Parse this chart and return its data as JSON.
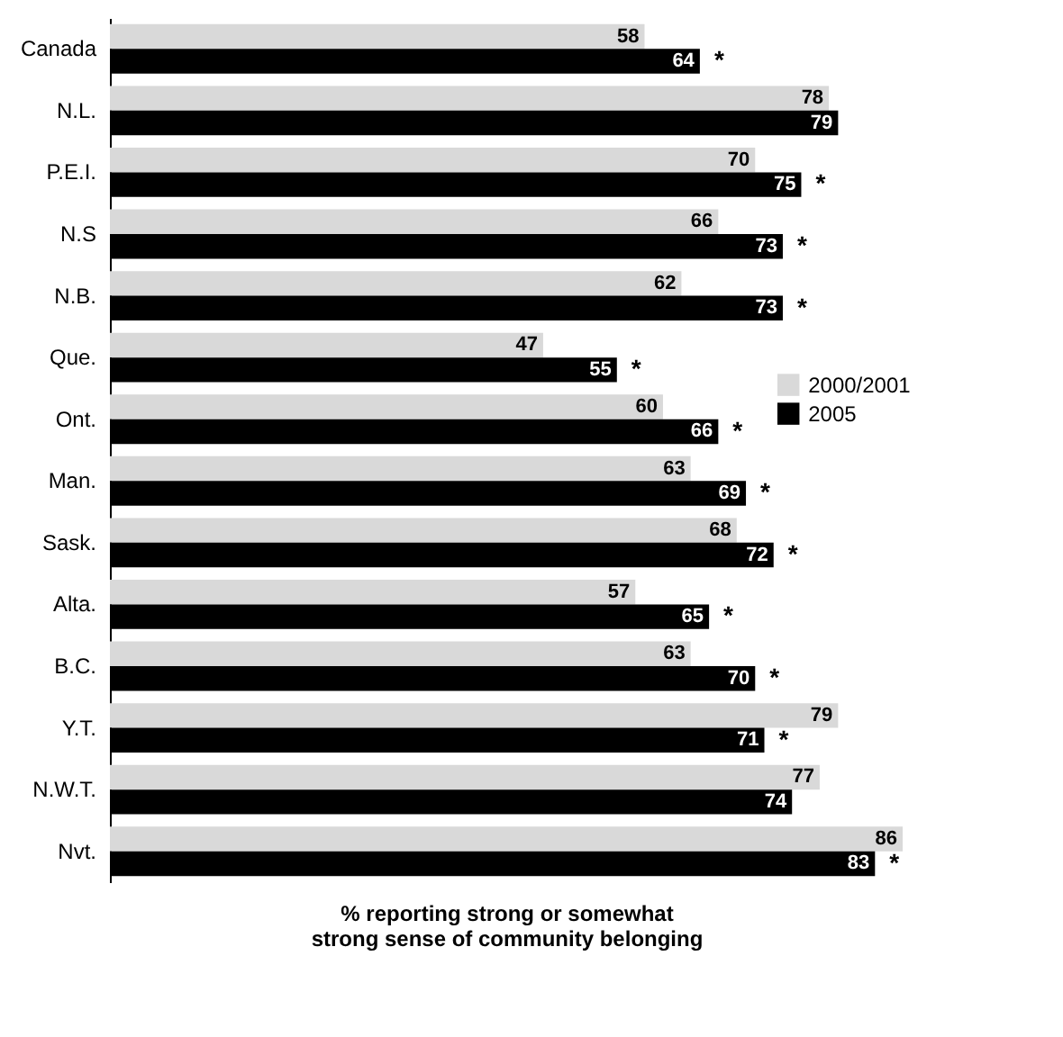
{
  "chart_data": {
    "type": "bar",
    "orientation": "horizontal",
    "xlabel": "% reporting strong or somewhat strong sense of community belonging",
    "categories": [
      "Canada",
      "N.L.",
      "P.E.I.",
      "N.S",
      "N.B.",
      "Que.",
      "Ont.",
      "Man.",
      "Sask.",
      "Alta.",
      "B.C.",
      "Y.T.",
      "N.W.T.",
      "Nvt."
    ],
    "series": [
      {
        "name": "2000/2001",
        "color": "#d9d9d9",
        "values": [
          58,
          78,
          70,
          66,
          62,
          47,
          60,
          63,
          68,
          57,
          63,
          79,
          77,
          86
        ]
      },
      {
        "name": "2005",
        "color": "#000000",
        "values": [
          64,
          79,
          75,
          73,
          73,
          55,
          66,
          69,
          72,
          65,
          70,
          71,
          74,
          83
        ]
      }
    ],
    "data_labels": true,
    "legend": "right",
    "grid": false,
    "annotations": [
      {
        "text": "*",
        "x": 64,
        "y": "Canada"
      },
      {
        "text": "*",
        "x": 75,
        "y": "P.E.I."
      },
      {
        "text": "*",
        "x": 73,
        "y": "N.S"
      },
      {
        "text": "*",
        "x": 73,
        "y": "N.B."
      },
      {
        "text": "*",
        "x": 55,
        "y": "Que."
      },
      {
        "text": "*",
        "x": 66,
        "y": "Ont."
      },
      {
        "text": "*",
        "x": 69,
        "y": "Man."
      },
      {
        "text": "*",
        "x": 72,
        "y": "Sask."
      },
      {
        "text": "*",
        "x": 65,
        "y": "Alta."
      },
      {
        "text": "*",
        "x": 70,
        "y": "B.C."
      },
      {
        "text": "*",
        "x": 71,
        "y": "Y.T."
      },
      {
        "text": "*",
        "x": 83,
        "y": "Nvt."
      }
    ]
  }
}
